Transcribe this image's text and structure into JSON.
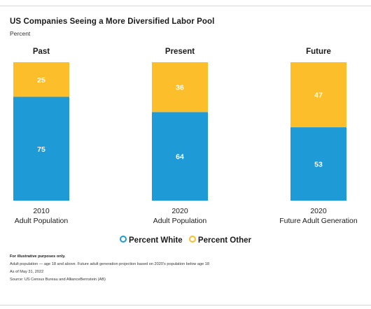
{
  "header": {
    "title": "US Companies Seeing a More Diversified Labor Pool",
    "subtitle": "Percent"
  },
  "chart_data": {
    "type": "bar",
    "stacked": true,
    "panel_titles": [
      "Past",
      "Present",
      "Future"
    ],
    "categories": [
      [
        "2010",
        "Adult Population"
      ],
      [
        "2020",
        "Adult Population"
      ],
      [
        "2020",
        "Future Adult Generation"
      ]
    ],
    "series": [
      {
        "name": "Percent White",
        "color": "#1e9ad6",
        "values": [
          75,
          64,
          53
        ]
      },
      {
        "name": "Percent Other",
        "color": "#fdbe2b",
        "values": [
          25,
          36,
          47
        ]
      }
    ],
    "ylim": [
      0,
      100
    ],
    "legend_position": "bottom"
  },
  "legend": {
    "items": [
      {
        "label": "Percent White",
        "color": "#1e9ad6"
      },
      {
        "label": "Percent Other",
        "color": "#fdbe2b"
      }
    ]
  },
  "notes": {
    "illustrative": "For illustrative purposes only.",
    "definition": "Adult population — age 18 and above. Future adult generation projection based on 2020's population below age 18",
    "as_of": "As of May 31, 2022",
    "source": "Source: US Census Bureau and AllianceBernstein (AB)"
  }
}
